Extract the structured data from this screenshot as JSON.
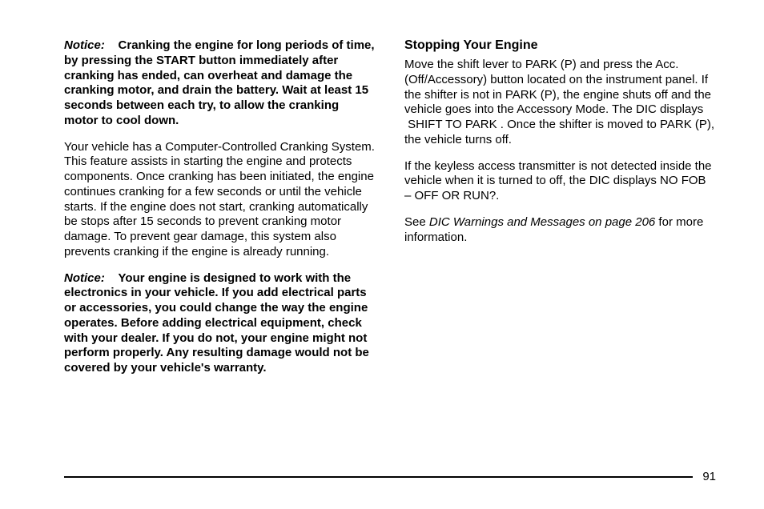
{
  "left": {
    "notice1_label": "Notice:",
    "notice1_body": "Cranking the engine for long periods of time, by pressing the START button immediately after cranking has ended, can overheat and damage the cranking motor, and drain the battery. Wait at least 15 seconds between each try, to allow the cranking motor to cool down.",
    "para1": "Your vehicle has a Computer-Controlled Cranking System. This feature assists in starting the engine and protects components. Once cranking has been initiated, the engine continues cranking for a few seconds or until the vehicle starts. If the engine does not start, cranking automatically be stops after 15 seconds to prevent cranking motor damage. To prevent gear damage, this system also prevents cranking if the engine is already running.",
    "notice2_label": "Notice:",
    "notice2_body": "Your engine is designed to work with the electronics in your vehicle. If you add electrical parts or accessories, you could change the way the engine operates. Before adding electrical equipment, check with your dealer. If you do not, your engine might not perform properly. Any resulting damage would not be covered by your vehicle's warranty."
  },
  "right": {
    "heading": "Stopping Your Engine",
    "para1": "Move the shift lever to PARK (P) and press the Acc. (Off/Accessory) button located on the instrument panel. If the shifter is not in PARK (P), the engine shuts off and the vehicle goes into the Accessory Mode. The DIC displays  SHIFT TO PARK . Once the shifter is moved to PARK (P), the vehicle turns off.",
    "para2": "If the keyless access transmitter is not detected inside the vehicle when it is turned to off, the DIC displays NO FOB – OFF OR RUN?.",
    "para3_pre": "See ",
    "para3_xref": "DIC Warnings and Messages on page 206",
    "para3_post": " for more information."
  },
  "page_number": "91"
}
